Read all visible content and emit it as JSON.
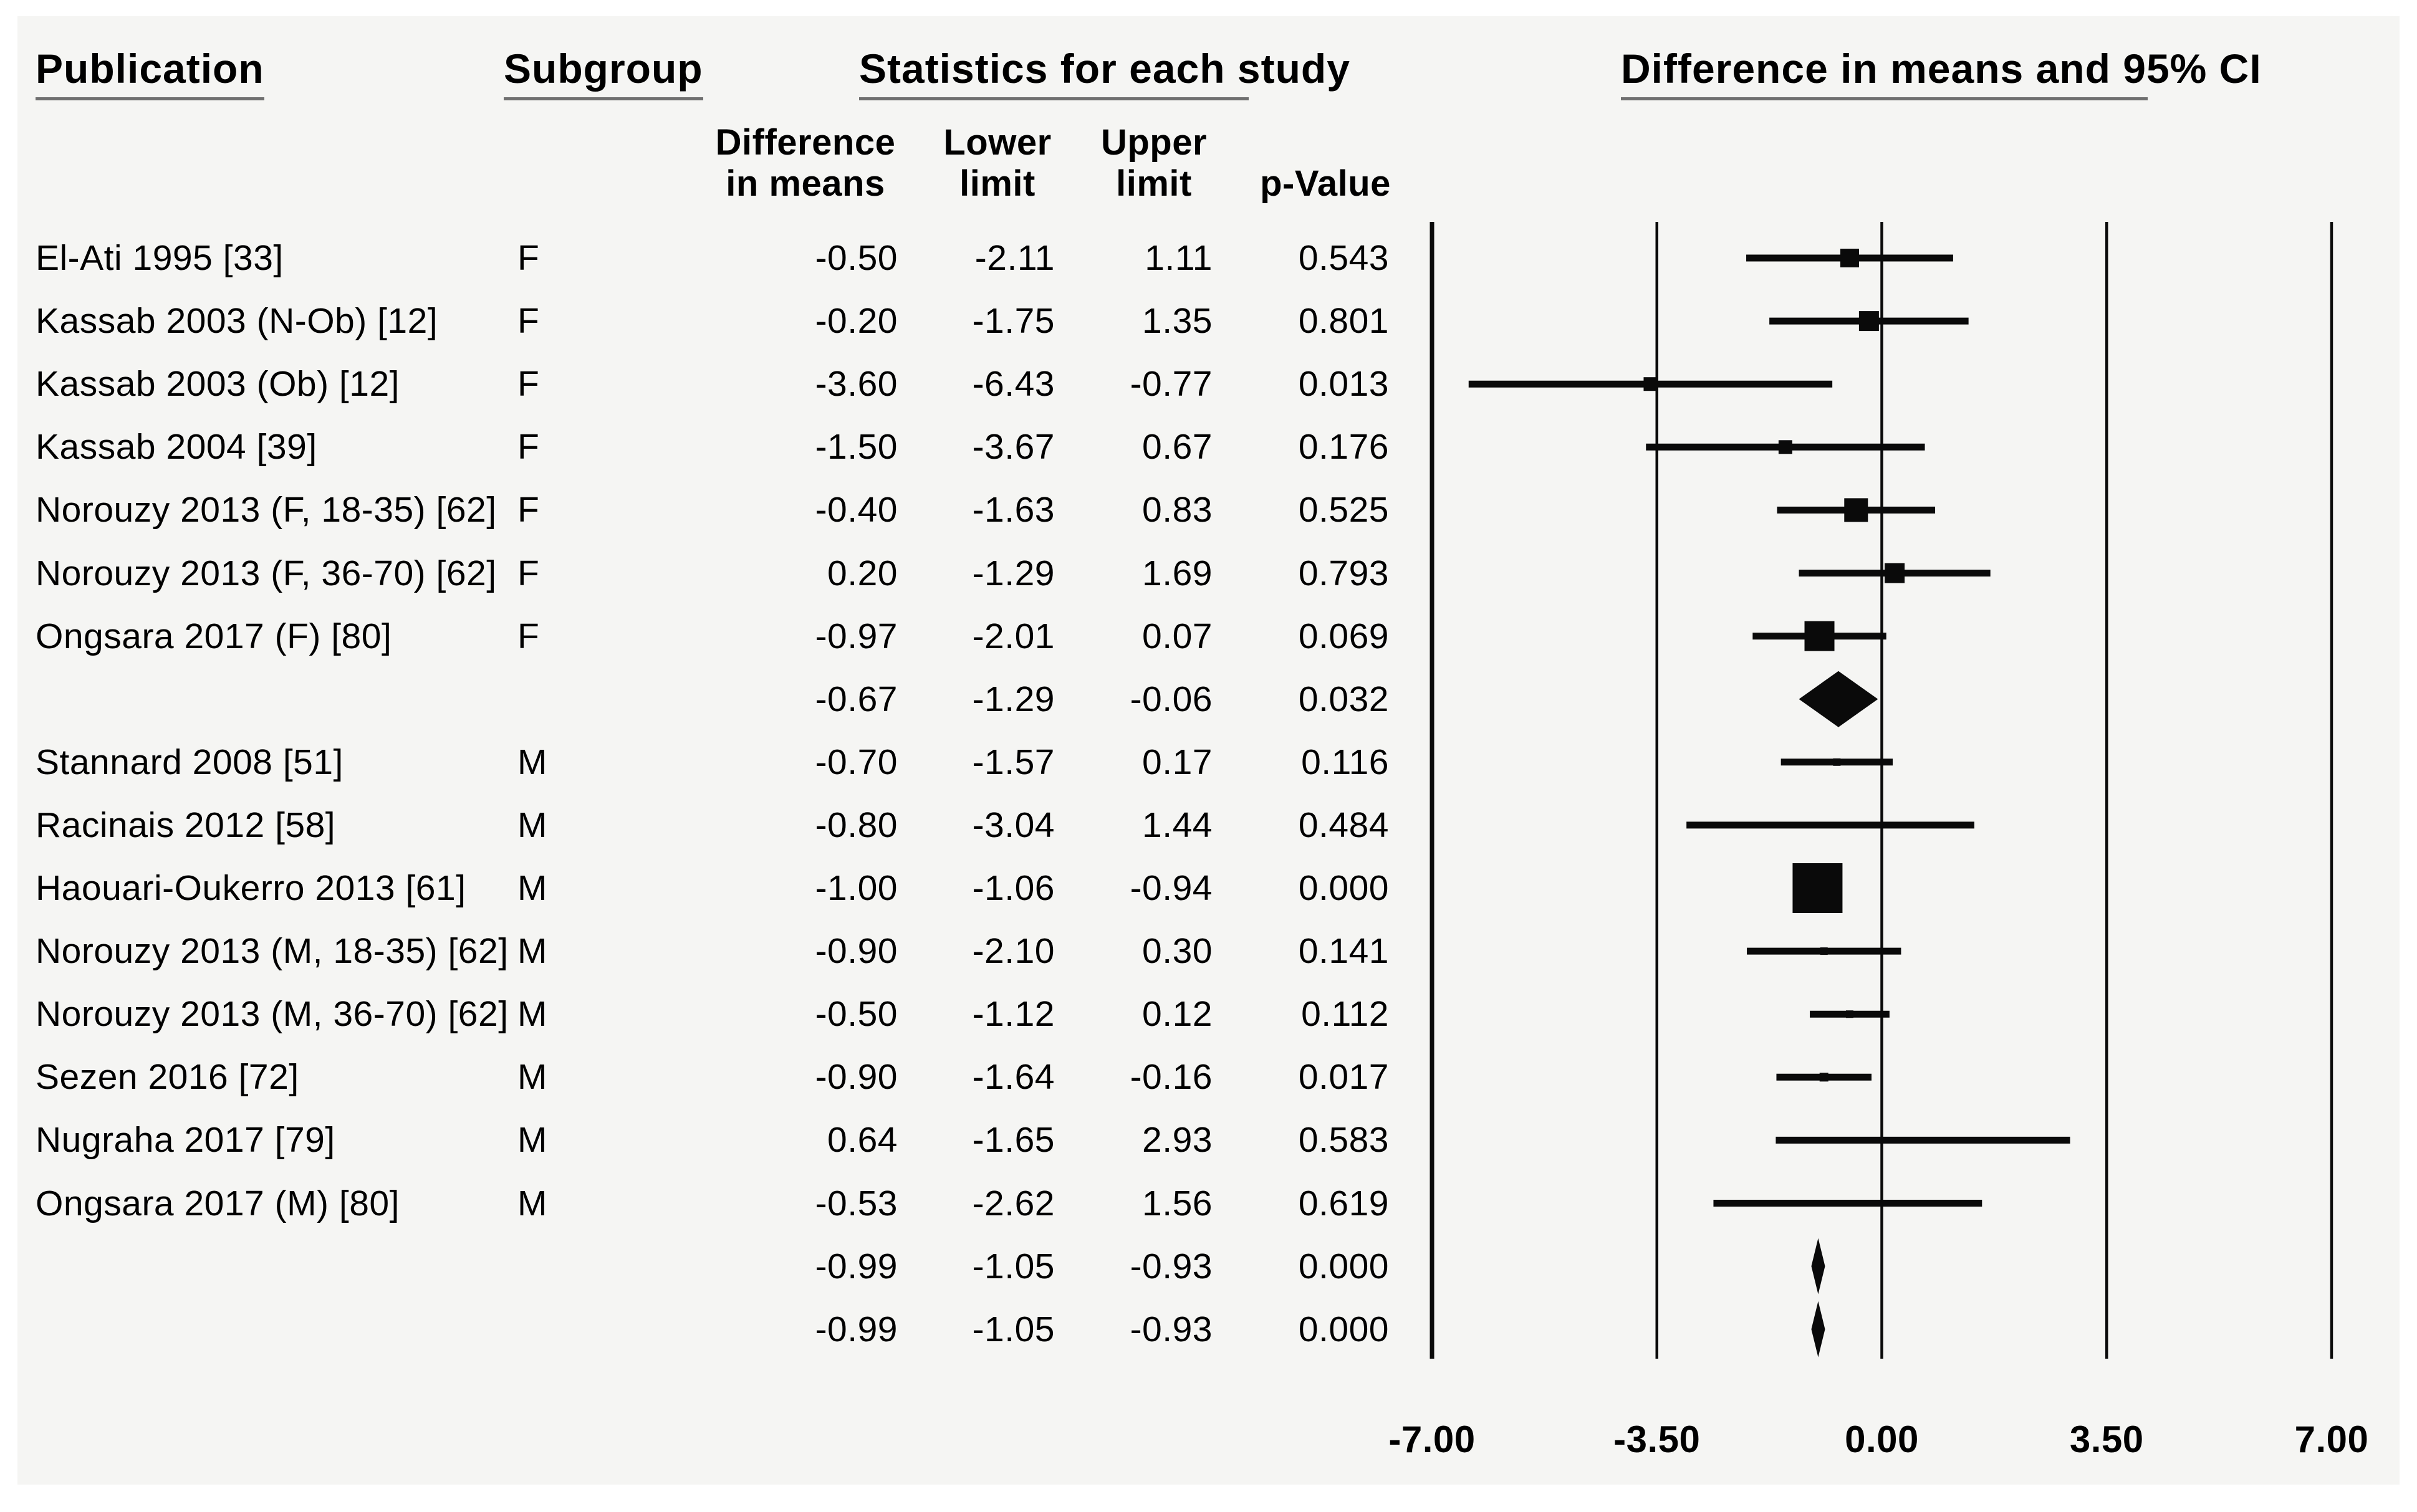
{
  "figure": {
    "kind": "forest-plot",
    "colors": {
      "text": "#000000",
      "underline": "#6f6f6f",
      "panel_background": "#f5f5f3",
      "page_background": "#ffffff",
      "marker": "#0a0a0a"
    }
  },
  "headers": {
    "publication": "Publication",
    "subgroup": "Subgroup",
    "statistics": "Statistics for each study",
    "plot": "Difference in means and 95% CI"
  },
  "subheaders": {
    "diff_line1": "Difference",
    "diff_line2": "in means",
    "lower_line1": "Lower",
    "lower_line2": "limit",
    "upper_line1": "Upper",
    "upper_line2": "limit",
    "p_value": "p-Value"
  },
  "chart_data": {
    "type": "forest",
    "title": "Difference in means and 95% CI",
    "x_axis": {
      "range": [
        -7,
        7
      ],
      "tick_labels": [
        "-7.00",
        "-3.50",
        "0.00",
        "3.50",
        "7.00"
      ],
      "tick_values": [
        -7,
        -3.5,
        0,
        3.5,
        7
      ],
      "grid": true
    },
    "columns": [
      "Publication",
      "Subgroup",
      "Difference in means",
      "Lower limit",
      "Upper limit",
      "p-Value"
    ],
    "rows": [
      {
        "publication": "El-Ati 1995 [33]",
        "subgroup": "F",
        "diff": "-0.50",
        "lower": "-2.11",
        "upper": "1.11",
        "p": "0.543",
        "row_type": "study",
        "marker_size": 30
      },
      {
        "publication": "Kassab 2003 (N-Ob) [12]",
        "subgroup": "F",
        "diff": "-0.20",
        "lower": "-1.75",
        "upper": "1.35",
        "p": "0.801",
        "row_type": "study",
        "marker_size": 32
      },
      {
        "publication": "Kassab 2003 (Ob) [12]",
        "subgroup": "F",
        "diff": "-3.60",
        "lower": "-6.43",
        "upper": "-0.77",
        "p": "0.013",
        "row_type": "study",
        "marker_size": 22
      },
      {
        "publication": "Kassab 2004 [39]",
        "subgroup": "F",
        "diff": "-1.50",
        "lower": "-3.67",
        "upper": "0.67",
        "p": "0.176",
        "row_type": "study",
        "marker_size": 22
      },
      {
        "publication": "Norouzy 2013 (F, 18-35) [62]",
        "subgroup": "F",
        "diff": "-0.40",
        "lower": "-1.63",
        "upper": "0.83",
        "p": "0.525",
        "row_type": "study",
        "marker_size": 38
      },
      {
        "publication": "Norouzy 2013 (F, 36-70) [62]",
        "subgroup": "F",
        "diff": "0.20",
        "lower": "-1.29",
        "upper": "1.69",
        "p": "0.793",
        "row_type": "study",
        "marker_size": 32
      },
      {
        "publication": "Ongsara 2017 (F) [80]",
        "subgroup": "F",
        "diff": "-0.97",
        "lower": "-2.01",
        "upper": "0.07",
        "p": "0.069",
        "row_type": "study",
        "marker_size": 48
      },
      {
        "publication": "",
        "subgroup": "",
        "diff": "-0.67",
        "lower": "-1.29",
        "upper": "-0.06",
        "p": "0.032",
        "row_type": "subtotal",
        "diamond_half_height": 45
      },
      {
        "publication": "Stannard 2008 [51]",
        "subgroup": "M",
        "diff": "-0.70",
        "lower": "-1.57",
        "upper": "0.17",
        "p": "0.116",
        "row_type": "study",
        "marker_size": 12
      },
      {
        "publication": "Racinais 2012 [58]",
        "subgroup": "M",
        "diff": "-0.80",
        "lower": "-3.04",
        "upper": "1.44",
        "p": "0.484",
        "row_type": "study",
        "marker_size": 10
      },
      {
        "publication": "Haouari-Oukerro 2013 [61]",
        "subgroup": "M",
        "diff": "-1.00",
        "lower": "-1.06",
        "upper": "-0.94",
        "p": "0.000",
        "row_type": "study",
        "marker_size": 80
      },
      {
        "publication": "Norouzy 2013 (M, 18-35) [62]",
        "subgroup": "M",
        "diff": "-0.90",
        "lower": "-2.10",
        "upper": "0.30",
        "p": "0.141",
        "row_type": "study",
        "marker_size": 12
      },
      {
        "publication": "Norouzy 2013 (M, 36-70) [62]",
        "subgroup": "M",
        "diff": "-0.50",
        "lower": "-1.12",
        "upper": "0.12",
        "p": "0.112",
        "row_type": "study",
        "marker_size": 12
      },
      {
        "publication": "Sezen 2016 [72]",
        "subgroup": "M",
        "diff": "-0.90",
        "lower": "-1.64",
        "upper": "-0.16",
        "p": "0.017",
        "row_type": "study",
        "marker_size": 14
      },
      {
        "publication": "Nugraha 2017 [79]",
        "subgroup": "M",
        "diff": "0.64",
        "lower": "-1.65",
        "upper": "2.93",
        "p": "0.583",
        "row_type": "study",
        "marker_size": 10
      },
      {
        "publication": "Ongsara 2017 (M) [80]",
        "subgroup": "M",
        "diff": "-0.53",
        "lower": "-2.62",
        "upper": "1.56",
        "p": "0.619",
        "row_type": "study",
        "marker_size": 10
      },
      {
        "publication": "",
        "subgroup": "",
        "diff": "-0.99",
        "lower": "-1.05",
        "upper": "-0.93",
        "p": "0.000",
        "row_type": "subtotal",
        "diamond_half_height": 45
      },
      {
        "publication": "",
        "subgroup": "",
        "diff": "-0.99",
        "lower": "-1.05",
        "upper": "-0.93",
        "p": "0.000",
        "row_type": "overall",
        "diamond_half_height": 45
      }
    ]
  }
}
